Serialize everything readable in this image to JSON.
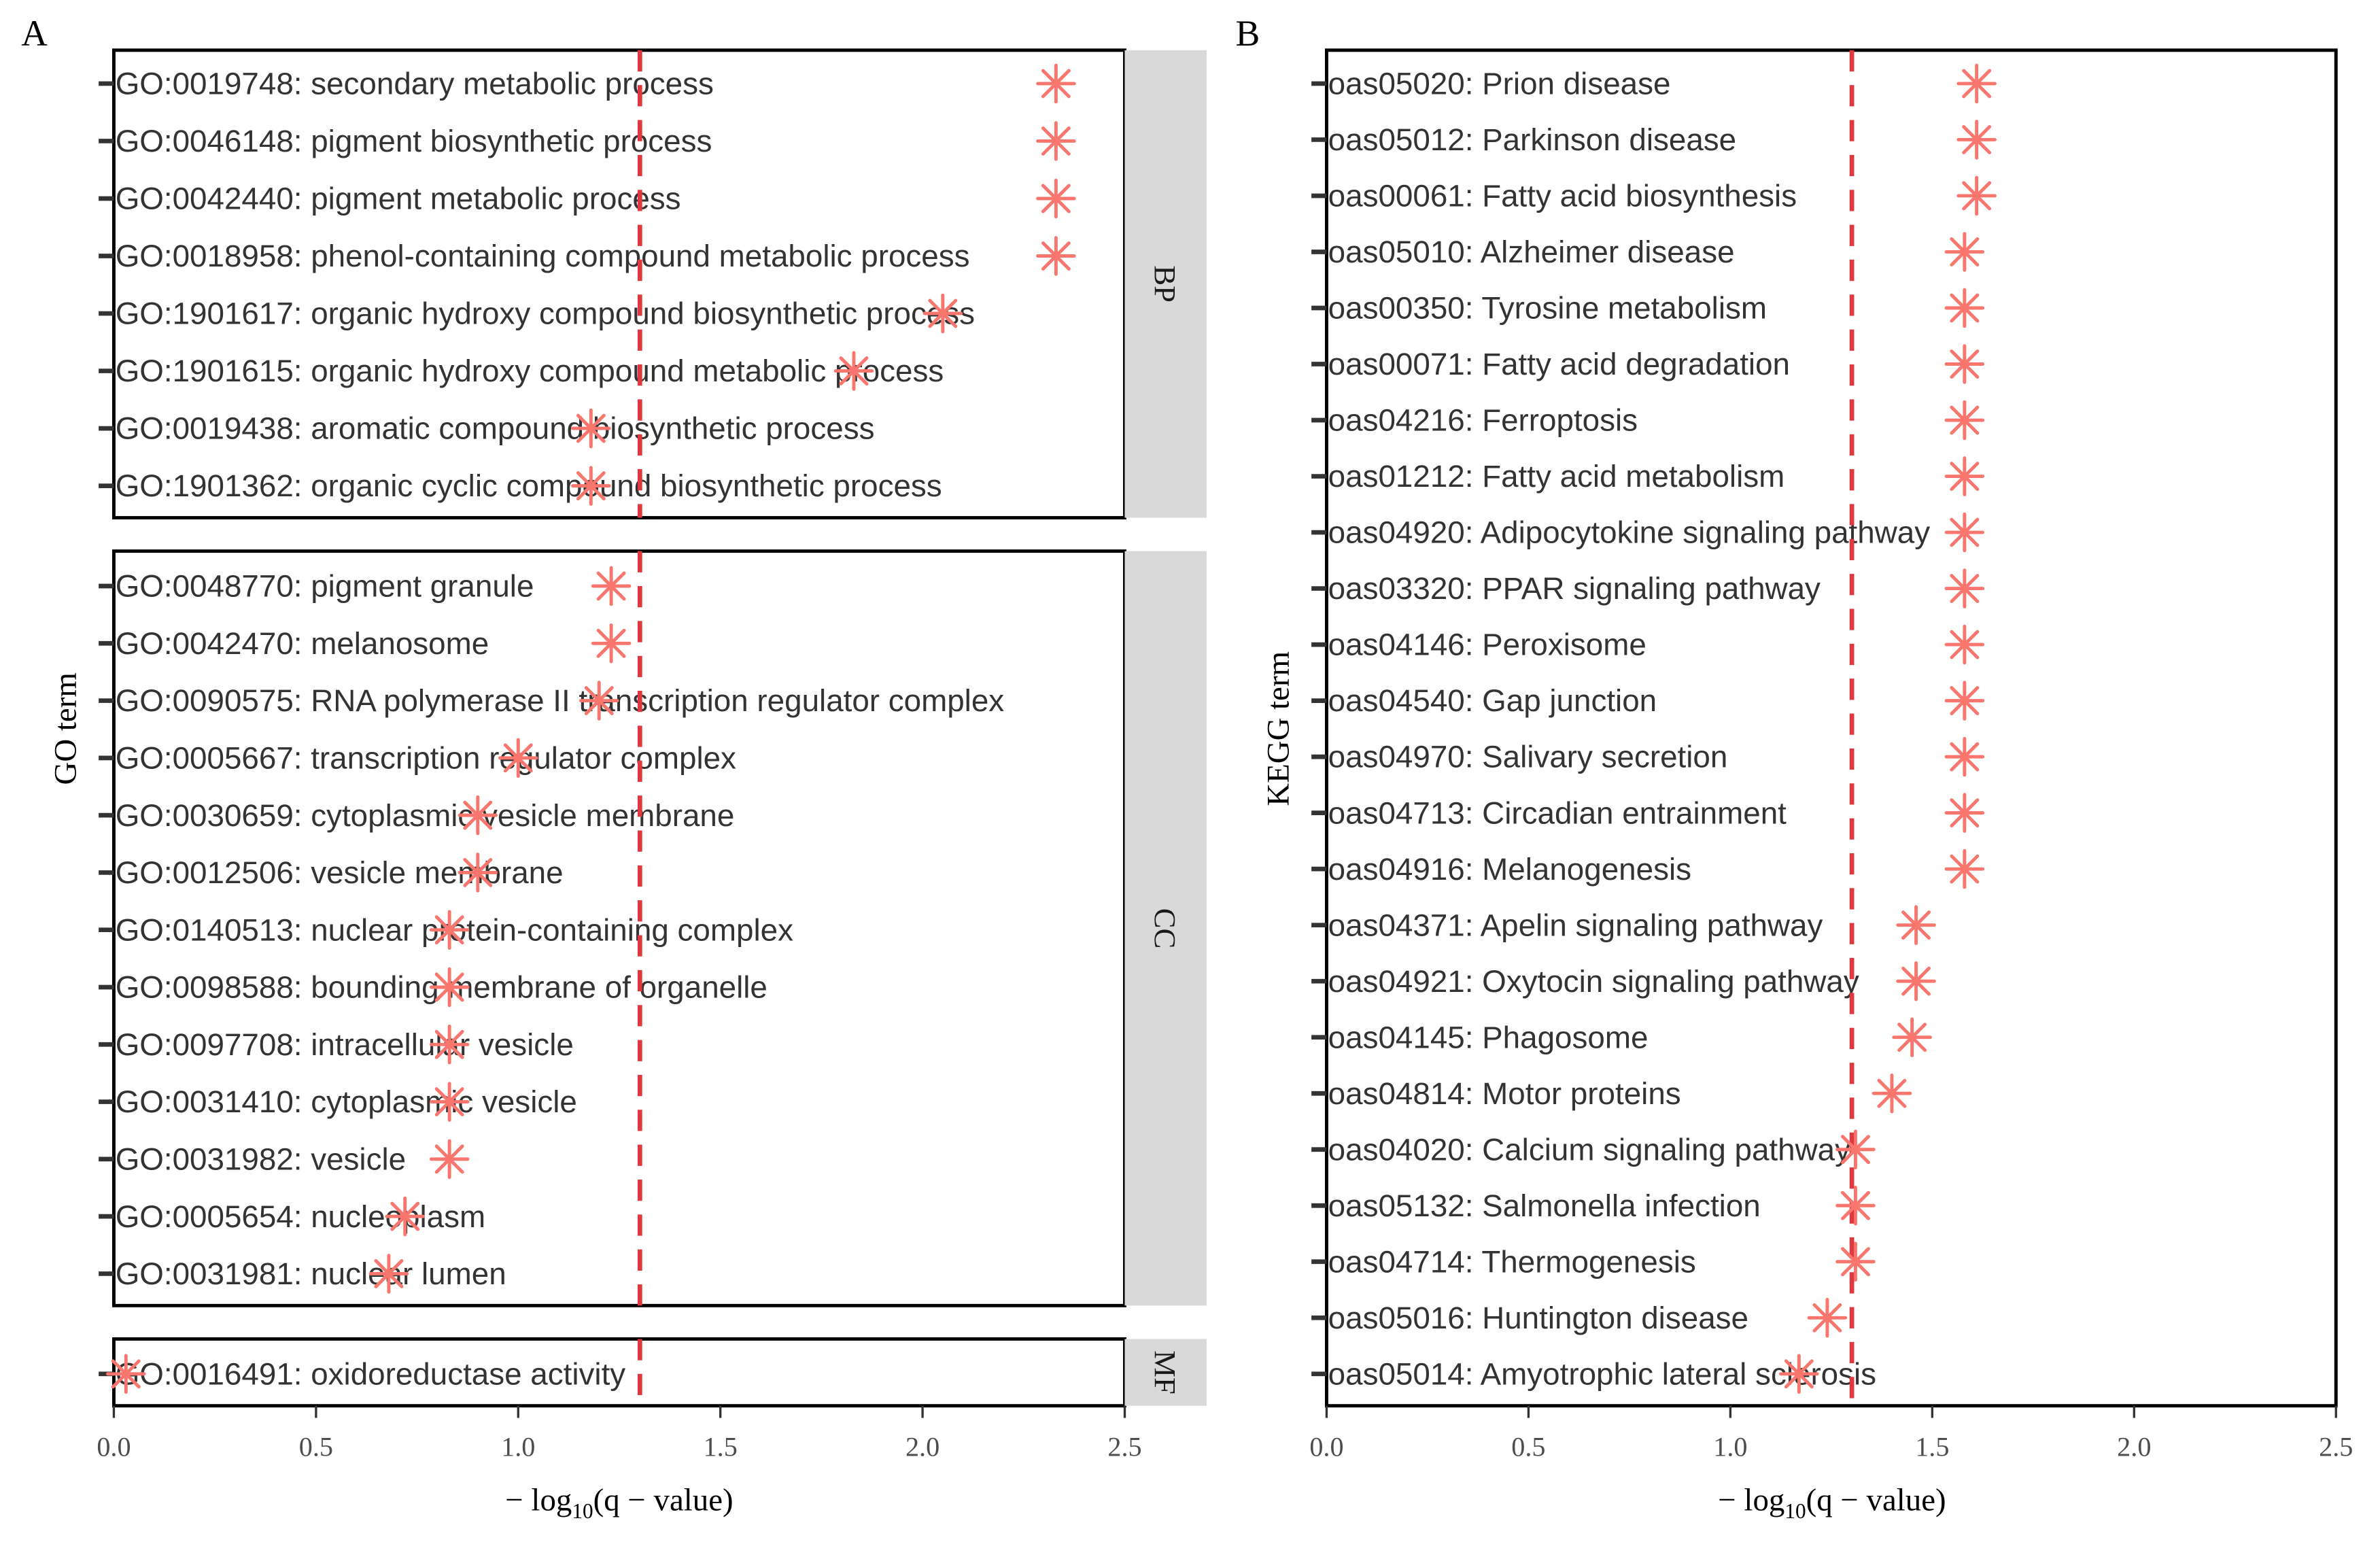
{
  "colors": {
    "point": "#F8766D",
    "threshold": "#E0383E",
    "strip": "#D9D9D9"
  },
  "chart_data": [
    {
      "type": "scatter",
      "panel_label": "A",
      "xlabel_prefix": "− log",
      "xlabel_sub": "10",
      "xlabel_suffix": "(q − value)",
      "ylabel": "GO term",
      "xlim": [
        0,
        2.5
      ],
      "xticks": [
        "0.0",
        "0.5",
        "1.0",
        "1.5",
        "2.0",
        "2.5"
      ],
      "threshold": 1.301,
      "facets": [
        {
          "strip": "BP",
          "terms": [
            {
              "label": "GO:0019748: secondary metabolic process",
              "value": 2.33
            },
            {
              "label": "GO:0046148: pigment biosynthetic process",
              "value": 2.33
            },
            {
              "label": "GO:0042440: pigment metabolic process",
              "value": 2.33
            },
            {
              "label": "GO:0018958: phenol-containing compound metabolic process",
              "value": 2.33
            },
            {
              "label": "GO:1901617: organic hydroxy compound biosynthetic process",
              "value": 2.05
            },
            {
              "label": "GO:1901615: organic hydroxy compound metabolic process",
              "value": 1.83
            },
            {
              "label": "GO:0019438: aromatic compound biosynthetic process",
              "value": 1.18
            },
            {
              "label": "GO:1901362: organic cyclic compound biosynthetic process",
              "value": 1.18
            }
          ]
        },
        {
          "strip": "CC",
          "terms": [
            {
              "label": "GO:0048770: pigment granule",
              "value": 1.23
            },
            {
              "label": "GO:0042470: melanosome",
              "value": 1.23
            },
            {
              "label": "GO:0090575: RNA polymerase II transcription regulator complex",
              "value": 1.2
            },
            {
              "label": "GO:0005667: transcription regulator complex",
              "value": 1.0
            },
            {
              "label": "GO:0030659: cytoplasmic vesicle membrane",
              "value": 0.9
            },
            {
              "label": "GO:0012506: vesicle membrane",
              "value": 0.9
            },
            {
              "label": "GO:0140513: nuclear protein-containing complex",
              "value": 0.83
            },
            {
              "label": "GO:0098588: bounding membrane of organelle",
              "value": 0.83
            },
            {
              "label": "GO:0097708: intracellular vesicle",
              "value": 0.83
            },
            {
              "label": "GO:0031410: cytoplasmic vesicle",
              "value": 0.83
            },
            {
              "label": "GO:0031982: vesicle",
              "value": 0.83
            },
            {
              "label": "GO:0005654: nucleoplasm",
              "value": 0.72
            },
            {
              "label": "GO:0031981: nuclear lumen",
              "value": 0.68
            }
          ]
        },
        {
          "strip": "MF",
          "terms": [
            {
              "label": "GO:0016491: oxidoreductase activity",
              "value": 0.03
            }
          ]
        }
      ]
    },
    {
      "type": "scatter",
      "panel_label": "B",
      "xlabel_prefix": "− log",
      "xlabel_sub": "10",
      "xlabel_suffix": "(q − value)",
      "ylabel": "KEGG term",
      "xlim": [
        0,
        2.5
      ],
      "xticks": [
        "0.0",
        "0.5",
        "1.0",
        "1.5",
        "2.0",
        "2.5"
      ],
      "threshold": 1.301,
      "terms": [
        {
          "label": "oas05020: Prion disease",
          "value": 1.61
        },
        {
          "label": "oas05012: Parkinson disease",
          "value": 1.61
        },
        {
          "label": "oas00061: Fatty acid biosynthesis",
          "value": 1.61
        },
        {
          "label": "oas05010: Alzheimer disease",
          "value": 1.58
        },
        {
          "label": "oas00350: Tyrosine metabolism",
          "value": 1.58
        },
        {
          "label": "oas00071: Fatty acid degradation",
          "value": 1.58
        },
        {
          "label": "oas04216: Ferroptosis",
          "value": 1.58
        },
        {
          "label": "oas01212: Fatty acid metabolism",
          "value": 1.58
        },
        {
          "label": "oas04920: Adipocytokine signaling pathway",
          "value": 1.58
        },
        {
          "label": "oas03320: PPAR signaling pathway",
          "value": 1.58
        },
        {
          "label": "oas04146: Peroxisome",
          "value": 1.58
        },
        {
          "label": "oas04540: Gap junction",
          "value": 1.58
        },
        {
          "label": "oas04970: Salivary secretion",
          "value": 1.58
        },
        {
          "label": "oas04713: Circadian entrainment",
          "value": 1.58
        },
        {
          "label": "oas04916: Melanogenesis",
          "value": 1.58
        },
        {
          "label": "oas04371: Apelin signaling pathway",
          "value": 1.46
        },
        {
          "label": "oas04921: Oxytocin signaling pathway",
          "value": 1.46
        },
        {
          "label": "oas04145: Phagosome",
          "value": 1.45
        },
        {
          "label": "oas04814: Motor proteins",
          "value": 1.4
        },
        {
          "label": "oas04020: Calcium signaling pathway",
          "value": 1.31
        },
        {
          "label": "oas05132: Salmonella infection",
          "value": 1.31
        },
        {
          "label": "oas04714: Thermogenesis",
          "value": 1.31
        },
        {
          "label": "oas05016: Huntington disease",
          "value": 1.24
        },
        {
          "label": "oas05014: Amyotrophic lateral sclerosis",
          "value": 1.17
        }
      ]
    }
  ]
}
